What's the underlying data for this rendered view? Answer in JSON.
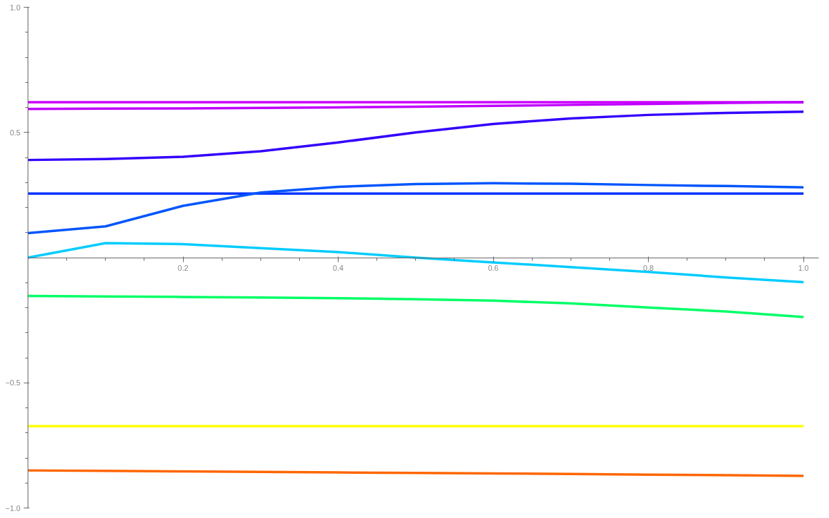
{
  "chart_data": {
    "type": "line",
    "line_style": "solid",
    "grid": false,
    "xlim": [
      0,
      1.02
    ],
    "ylim": [
      -1.0,
      1.0
    ],
    "xticks": [
      {
        "value": 0.05,
        "label": null
      },
      {
        "value": 0.1,
        "label": null
      },
      {
        "value": 0.15,
        "label": null
      },
      0.2,
      {
        "value": 0.25,
        "label": null
      },
      {
        "value": 0.3,
        "label": null
      },
      {
        "value": 0.35,
        "label": null
      },
      0.4,
      {
        "value": 0.45,
        "label": null
      },
      {
        "value": 0.5,
        "label": null
      },
      {
        "value": 0.55,
        "label": null
      },
      0.6,
      {
        "value": 0.65,
        "label": null
      },
      {
        "value": 0.7,
        "label": null
      },
      {
        "value": 0.75,
        "label": null
      },
      0.8,
      {
        "value": 0.85,
        "label": null
      },
      {
        "value": 0.9,
        "label": null
      },
      {
        "value": 0.95,
        "label": null
      },
      {
        "value": 1.0,
        "label": "1.0"
      }
    ],
    "yticks": [
      {
        "value": -1.0,
        "label": "−1.0"
      },
      {
        "value": -0.9,
        "label": null
      },
      {
        "value": -0.8,
        "label": null
      },
      {
        "value": -0.7,
        "label": null
      },
      {
        "value": -0.6,
        "label": null
      },
      {
        "value": -0.5,
        "label": "−0.5"
      },
      {
        "value": -0.4,
        "label": null
      },
      {
        "value": -0.3,
        "label": null
      },
      {
        "value": -0.2,
        "label": null
      },
      {
        "value": -0.1,
        "label": null
      },
      {
        "value": 0.1,
        "label": null
      },
      {
        "value": 0.2,
        "label": null
      },
      {
        "value": 0.3,
        "label": null
      },
      {
        "value": 0.4,
        "label": null
      },
      0.5,
      {
        "value": 0.6,
        "label": null
      },
      {
        "value": 0.7,
        "label": null
      },
      {
        "value": 0.8,
        "label": null
      },
      {
        "value": 0.9,
        "label": null
      },
      {
        "value": 1.0,
        "label": "1.0"
      }
    ],
    "x": [
      0,
      0.1,
      0.2,
      0.3,
      0.4,
      0.5,
      0.6,
      0.7,
      0.8,
      0.9,
      1.0
    ],
    "series": [
      {
        "color": "#cc00ff",
        "values": [
          0.621,
          0.621,
          0.621,
          0.621,
          0.621,
          0.621,
          0.621,
          0.621,
          0.621,
          0.621,
          0.621
        ]
      },
      {
        "color": "#c000ff",
        "values": [
          0.594,
          0.595,
          0.596,
          0.598,
          0.6,
          0.603,
          0.606,
          0.61,
          0.614,
          0.618,
          0.621
        ]
      },
      {
        "color": "#3300ff",
        "values": [
          0.39,
          0.394,
          0.403,
          0.425,
          0.46,
          0.5,
          0.534,
          0.556,
          0.57,
          0.578,
          0.583
        ]
      },
      {
        "color": "#0033ff",
        "values": [
          0.256,
          0.256,
          0.256,
          0.256,
          0.256,
          0.256,
          0.256,
          0.256,
          0.256,
          0.256,
          0.256
        ]
      },
      {
        "color": "#0055ff",
        "values": [
          0.098,
          0.125,
          0.207,
          0.26,
          0.283,
          0.294,
          0.297,
          0.295,
          0.29,
          0.286,
          0.281
        ]
      },
      {
        "color": "#00ccff",
        "values": [
          0.0,
          0.058,
          0.054,
          0.038,
          0.022,
          0.0,
          -0.019,
          -0.038,
          -0.057,
          -0.079,
          -0.098
        ]
      },
      {
        "color": "#00ff66",
        "values": [
          -0.153,
          -0.155,
          -0.157,
          -0.159,
          -0.162,
          -0.166,
          -0.172,
          -0.183,
          -0.199,
          -0.215,
          -0.237
        ]
      },
      {
        "color": "#ffff00",
        "values": [
          -0.673,
          -0.673,
          -0.673,
          -0.673,
          -0.673,
          -0.673,
          -0.673,
          -0.673,
          -0.673,
          -0.673,
          -0.673
        ]
      },
      {
        "color": "#ff6600",
        "values": [
          -0.85,
          -0.852,
          -0.854,
          -0.856,
          -0.858,
          -0.86,
          -0.862,
          -0.864,
          -0.867,
          -0.869,
          -0.872
        ]
      }
    ]
  }
}
